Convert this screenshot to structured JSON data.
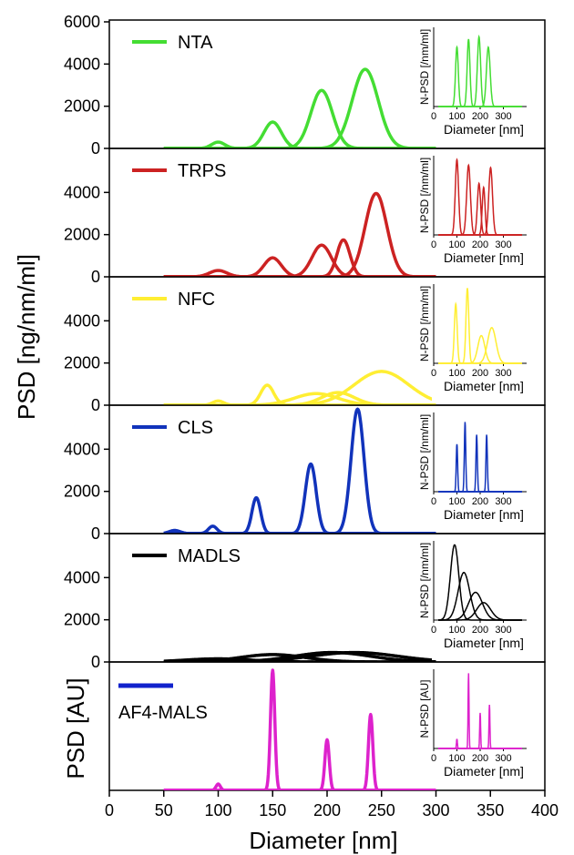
{
  "chart_data": [
    {
      "type": "line",
      "legend": "NTA",
      "color": "#44dd33",
      "ylim": [
        0,
        6000
      ],
      "yticks": [
        "0",
        "2000",
        "4000",
        "6000"
      ],
      "peaks": [
        [
          100,
          300,
          6
        ],
        [
          150,
          1250,
          8
        ],
        [
          195,
          2750,
          10
        ],
        [
          235,
          3750,
          12
        ]
      ],
      "inset": {
        "ylabel": "N-PSD [/nm/ml]",
        "xlabel": "Diameter [nm]",
        "xticks": [
          "0",
          "100",
          "200",
          "300"
        ],
        "peaks": [
          [
            100,
            0.75,
            6
          ],
          [
            150,
            0.85,
            6
          ],
          [
            195,
            0.88,
            7
          ],
          [
            235,
            0.75,
            8
          ]
        ]
      }
    },
    {
      "type": "line",
      "legend": "TRPS",
      "color": "#cc2222",
      "ylim": [
        0,
        6000
      ],
      "yticks": [
        "0",
        "2000",
        "4000"
      ],
      "peaks": [
        [
          100,
          300,
          8
        ],
        [
          150,
          900,
          8
        ],
        [
          195,
          1500,
          9
        ],
        [
          215,
          1750,
          6
        ],
        [
          245,
          3950,
          10
        ]
      ],
      "inset": {
        "ylabel": "N-PSD [/nm/ml]",
        "xlabel": "Diameter [nm]",
        "xticks": [
          "0",
          "100",
          "200",
          "300"
        ],
        "peaks": [
          [
            100,
            0.95,
            7
          ],
          [
            150,
            0.88,
            8
          ],
          [
            195,
            0.65,
            7
          ],
          [
            215,
            0.6,
            6
          ],
          [
            245,
            0.85,
            8
          ]
        ]
      }
    },
    {
      "type": "line",
      "legend": "NFC",
      "color": "#ffee33",
      "ylim": [
        0,
        6000
      ],
      "yticks": [
        "0",
        "2000",
        "4000"
      ],
      "peaks": [
        [
          100,
          200,
          5
        ],
        [
          145,
          950,
          6
        ],
        [
          190,
          550,
          20
        ],
        [
          210,
          600,
          15
        ],
        [
          250,
          1600,
          25
        ]
      ],
      "inset": {
        "ylabel": "N-PSD [/nm/ml]",
        "xlabel": "Diameter [nm]",
        "xticks": [
          "0",
          "100",
          "200",
          "300"
        ],
        "peaks": [
          [
            95,
            0.75,
            6
          ],
          [
            145,
            0.95,
            6
          ],
          [
            205,
            0.35,
            15
          ],
          [
            250,
            0.45,
            18
          ]
        ]
      }
    },
    {
      "type": "line",
      "legend": "CLS",
      "color": "#1133bb",
      "ylim": [
        0,
        6000
      ],
      "yticks": [
        "0",
        "2000",
        "4000"
      ],
      "peaks": [
        [
          60,
          150,
          5
        ],
        [
          95,
          350,
          4
        ],
        [
          135,
          1700,
          4
        ],
        [
          185,
          3300,
          5
        ],
        [
          228,
          5900,
          6
        ]
      ],
      "inset": {
        "ylabel": "N-PSD [/nm/ml]",
        "xlabel": "Diameter [nm]",
        "xticks": [
          "0",
          "100",
          "200",
          "300"
        ],
        "peaks": [
          [
            100,
            0.6,
            3
          ],
          [
            135,
            0.88,
            3
          ],
          [
            185,
            0.72,
            3
          ],
          [
            228,
            0.72,
            3
          ]
        ]
      }
    },
    {
      "type": "line",
      "legend": "MADLS",
      "color": "#000000",
      "ylim": [
        0,
        6000
      ],
      "yticks": [
        "0",
        "2000",
        "4000"
      ],
      "peaks": [
        [
          100,
          150,
          30
        ],
        [
          150,
          350,
          30
        ],
        [
          205,
          450,
          35
        ],
        [
          225,
          450,
          40
        ]
      ],
      "inset": {
        "ylabel": "N-PSD [/nm/ml]",
        "xlabel": "Diameter [nm]",
        "xticks": [
          "0",
          "100",
          "200",
          "300"
        ],
        "peaks": [
          [
            90,
            0.95,
            18
          ],
          [
            130,
            0.6,
            25
          ],
          [
            180,
            0.35,
            30
          ],
          [
            215,
            0.22,
            30
          ]
        ]
      }
    },
    {
      "type": "line",
      "legend": "AF4-MALS",
      "color": "#dd22cc",
      "legend_marker_color": "#1122cc",
      "ylim": [
        0,
        1
      ],
      "yticks": [],
      "peaks": [
        [
          100,
          0.05,
          2
        ],
        [
          150,
          0.95,
          2
        ],
        [
          200,
          0.4,
          2
        ],
        [
          240,
          0.6,
          2
        ]
      ],
      "inset": {
        "ylabel": "N-PSD [AU]",
        "xlabel": "Diameter [nm]",
        "xticks": [
          "0",
          "100",
          "200",
          "300"
        ],
        "peaks": [
          [
            100,
            0.12,
            2
          ],
          [
            150,
            0.95,
            2
          ],
          [
            200,
            0.45,
            2
          ],
          [
            240,
            0.55,
            2
          ]
        ]
      }
    }
  ],
  "axes": {
    "ylabel_top": "PSD [ng/nm/ml]",
    "ylabel_bottom": "PSD [AU]",
    "xlabel": "Diameter [nm]",
    "xlim": [
      0,
      400
    ],
    "xticks": [
      "0",
      "50",
      "100",
      "150",
      "200",
      "250",
      "300",
      "350",
      "400"
    ]
  }
}
